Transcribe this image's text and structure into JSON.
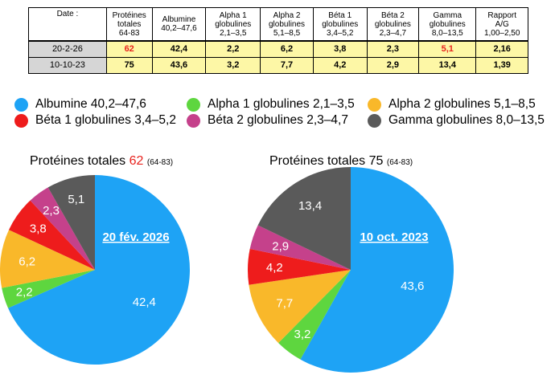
{
  "table": {
    "headers": [
      {
        "l1": "Date :",
        "l2": "",
        "l3": ""
      },
      {
        "l1": "Protéines",
        "l2": "totales",
        "l3": "64-83"
      },
      {
        "l1": "Albumine",
        "l2": "40,2–47,6",
        "l3": ""
      },
      {
        "l1": "Alpha 1",
        "l2": "globulines",
        "l3": "2,1–3,5"
      },
      {
        "l1": "Alpha 2",
        "l2": "globulines",
        "l3": "5,1–8,5"
      },
      {
        "l1": "Béta 1",
        "l2": "globulines",
        "l3": "3,4–5,2"
      },
      {
        "l1": "Béta 2",
        "l2": "globulines",
        "l3": "2,3–4,7"
      },
      {
        "l1": "Gamma",
        "l2": "globulines",
        "l3": "8,0–13,5"
      },
      {
        "l1": "Rapport",
        "l2": "A/G",
        "l3": "1,00–2,50"
      }
    ],
    "rows": [
      {
        "date": "20-2-26",
        "proteines": "62",
        "albumine": "42,4",
        "alpha1": "2,2",
        "alpha2": "6,2",
        "beta1": "3,8",
        "beta2": "2,3",
        "gamma": "5,1",
        "rapport": "2,16"
      },
      {
        "date": "10-10-23",
        "proteines": "75",
        "albumine": "43,6",
        "alpha1": "3,2",
        "alpha2": "7,7",
        "beta1": "4,2",
        "beta2": "2,9",
        "gamma": "13,4",
        "rapport": "1,39"
      }
    ],
    "flag_color": "#e8231e",
    "row_color": "#fdf7a6",
    "date_cell_color": "#d6d6d6"
  },
  "legend": [
    {
      "label": "Albumine 40,2–47,6",
      "color": "#1ea3f5"
    },
    {
      "label": "Alpha 1 globulines 2,1–3,5",
      "color": "#5ed63f"
    },
    {
      "label": "Alpha 2 globulines 5,1–8,5",
      "color": "#f9b82a"
    },
    {
      "label": "Béta 1 globulines 3,4–5,2",
      "color": "#ee1c1c"
    },
    {
      "label": "Béta 2 globulines 2,3–4,7",
      "color": "#c5418b"
    },
    {
      "label": "Gamma globulines 8,0–13,5",
      "color": "#5a5a5a"
    }
  ],
  "chart_data": [
    {
      "type": "pie",
      "title": "Protéines totales",
      "title_value": "62",
      "title_ref": "(64-83)",
      "center_label": "20 fév. 2026",
      "categories": [
        "Albumine",
        "Alpha 1 globulines",
        "Alpha 2 globulines",
        "Béta 1 globulines",
        "Béta 2 globulines",
        "Gamma globulines"
      ],
      "values": [
        42.4,
        2.2,
        6.2,
        3.8,
        2.3,
        5.1
      ],
      "labels": [
        "42,4",
        "2,2",
        "6,2",
        "3,8",
        "2,3",
        "5,1"
      ],
      "colors": [
        "#1ea3f5",
        "#5ed63f",
        "#f9b82a",
        "#ee1c1c",
        "#c5418b",
        "#5a5a5a"
      ]
    },
    {
      "type": "pie",
      "title": "Protéines totales",
      "title_value": "75",
      "title_ref": "(64-83)",
      "center_label": "10 oct. 2023",
      "categories": [
        "Albumine",
        "Alpha 1 globulines",
        "Alpha 2 globulines",
        "Béta 1 globulines",
        "Béta 2 globulines",
        "Gamma globulines"
      ],
      "values": [
        43.6,
        3.2,
        7.7,
        4.2,
        2.9,
        13.4
      ],
      "labels": [
        "43,6",
        "3,2",
        "7,7",
        "4,2",
        "2,9",
        "13,4"
      ],
      "colors": [
        "#1ea3f5",
        "#5ed63f",
        "#f9b82a",
        "#ee1c1c",
        "#c5418b",
        "#5a5a5a"
      ]
    }
  ]
}
